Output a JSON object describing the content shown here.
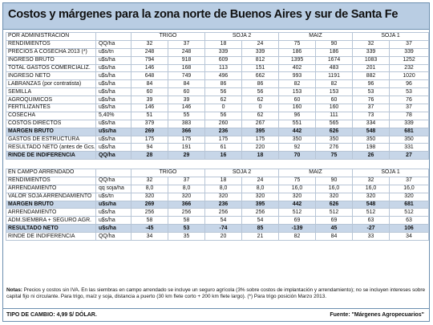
{
  "title": "Costos y márgenes para la zona norte de Buenos Aires y sur de Santa Fe",
  "section1": {
    "label": "POR ADMINISTRACIÓN",
    "groups": [
      "TRIGO",
      "SOJA 2",
      "MAÍZ",
      "SOJA 1"
    ],
    "rows": [
      {
        "label": "RENDIMIENTOS",
        "unit": "QQ/ha",
        "vals": [
          "32",
          "37",
          "18",
          "24",
          "75",
          "90",
          "32",
          "37"
        ]
      },
      {
        "label": "PRECIOS A COSECHA 2013 (*)",
        "unit": "u$s/tn",
        "vals": [
          "248",
          "248",
          "339",
          "339",
          "186",
          "186",
          "339",
          "339"
        ]
      },
      {
        "label": "INGRESO BRUTO",
        "unit": "u$s/ha",
        "vals": [
          "794",
          "918",
          "609",
          "812",
          "1395",
          "1674",
          "1083",
          "1252"
        ]
      },
      {
        "label": "TOTAL GASTOS COMERCIALIZ.",
        "unit": "u$s/ha",
        "vals": [
          "146",
          "168",
          "113",
          "151",
          "402",
          "483",
          "201",
          "232"
        ]
      },
      {
        "label": "INGRESO NETO",
        "unit": "u$s/ha",
        "vals": [
          "648",
          "749",
          "496",
          "662",
          "993",
          "1191",
          "882",
          "1020"
        ]
      },
      {
        "label": "LABRANZAS (por contratista)",
        "unit": "u$s/ha",
        "vals": [
          "84",
          "84",
          "86",
          "86",
          "82",
          "82",
          "96",
          "96"
        ]
      },
      {
        "label": "SEMILLA",
        "unit": "u$s/ha",
        "vals": [
          "60",
          "60",
          "56",
          "56",
          "153",
          "153",
          "53",
          "53"
        ]
      },
      {
        "label": "AGROQUIMICOS",
        "unit": "u$s/ha",
        "vals": [
          "39",
          "39",
          "62",
          "62",
          "60",
          "60",
          "76",
          "76"
        ]
      },
      {
        "label": "FERTILIZANTES",
        "unit": "u$s/ha",
        "vals": [
          "146",
          "146",
          "0",
          "0",
          "160",
          "160",
          "37",
          "37"
        ]
      },
      {
        "label": "COSECHA",
        "unit": "5,40%",
        "vals": [
          "51",
          "55",
          "56",
          "62",
          "96",
          "111",
          "73",
          "78"
        ]
      },
      {
        "label": "COSTOS DIRECTOS",
        "unit": "u$s/ha",
        "vals": [
          "379",
          "383",
          "260",
          "267",
          "551",
          "565",
          "334",
          "339"
        ]
      },
      {
        "label": "MARGEN BRUTO",
        "unit": "u$s/ha",
        "vals": [
          "269",
          "366",
          "236",
          "395",
          "442",
          "626",
          "548",
          "681"
        ],
        "hl": true
      },
      {
        "label": "GASTOS DE ESTRUCTURA",
        "unit": "u$s/ha",
        "vals": [
          "175",
          "175",
          "175",
          "175",
          "350",
          "350",
          "350",
          "350"
        ]
      },
      {
        "label": "RESULTADO NETO (antes de Gcs.)",
        "unit": "u$s/ha",
        "vals": [
          "94",
          "191",
          "61",
          "220",
          "92",
          "276",
          "198",
          "331"
        ]
      },
      {
        "label": "RINDE DE INDIFERENCIA",
        "unit": "QQ/ha",
        "vals": [
          "28",
          "29",
          "16",
          "18",
          "70",
          "75",
          "26",
          "27"
        ],
        "hl": true
      }
    ]
  },
  "section2": {
    "label": "EN CAMPO ARRENDADO",
    "groups": [
      "TRIGO",
      "SOJA 2",
      "MAÍZ",
      "SOJA 1"
    ],
    "rows": [
      {
        "label": "RENDIMIENTOS",
        "unit": "QQ/ha",
        "vals": [
          "32",
          "37",
          "18",
          "24",
          "75",
          "90",
          "32",
          "37"
        ]
      },
      {
        "label": "ARRENDAMIENTO",
        "unit": "qq soja/ha",
        "vals": [
          "8,0",
          "8,0",
          "8,0",
          "8,0",
          "16,0",
          "16,0",
          "16,0",
          "16,0"
        ]
      },
      {
        "label": "VALOR SOJA ARRENDAMIENTO",
        "unit": "u$s/tn",
        "vals": [
          "320",
          "320",
          "320",
          "320",
          "320",
          "320",
          "320",
          "320"
        ]
      },
      {
        "label": "MARGEN BRUTO",
        "unit": "u$s/ha",
        "vals": [
          "269",
          "366",
          "236",
          "395",
          "442",
          "626",
          "548",
          "681"
        ],
        "hl": true
      },
      {
        "label": "ARRENDAMIENTO",
        "unit": "u$s/ha",
        "vals": [
          "256",
          "256",
          "256",
          "256",
          "512",
          "512",
          "512",
          "512"
        ]
      },
      {
        "label": "ADM.SIEMBRA + SEGURO AGR.",
        "unit": "u$s/ha",
        "vals": [
          "58",
          "58",
          "54",
          "54",
          "69",
          "69",
          "63",
          "63"
        ]
      },
      {
        "label": "RESULTADO NETO",
        "unit": "u$s/ha",
        "vals": [
          "-45",
          "53",
          "-74",
          "85",
          "-139",
          "45",
          "-27",
          "106"
        ],
        "hl": true
      },
      {
        "label": "RINDE DE INDIFERENCIA",
        "unit": "QQ/ha",
        "vals": [
          "34",
          "35",
          "20",
          "21",
          "82",
          "84",
          "33",
          "34"
        ]
      }
    ]
  },
  "notes": {
    "prefix": "Notas:",
    "text": "Precios y costos sin IVA. En las siembras en campo arrendado se incluye un seguro agrícola (3% sobre costos de implantación y arrendamiento); no se incluyen intereses sobre capital fijo ni circulante. Para trigo, maíz y soja, distancia a puerto (30 km flete corto + 200 km flete largo). (*) Para trigo posición Marzo 2013."
  },
  "footer": {
    "exchange": "TIPO DE CAMBIO: 4,99 $/ DÓLAR.",
    "source": "Fuente: \"Márgenes Agropecuarios\""
  },
  "colors": {
    "accent": "#b9cde3",
    "highlight": "#c7d6e8",
    "border": "#6c8fb0"
  }
}
